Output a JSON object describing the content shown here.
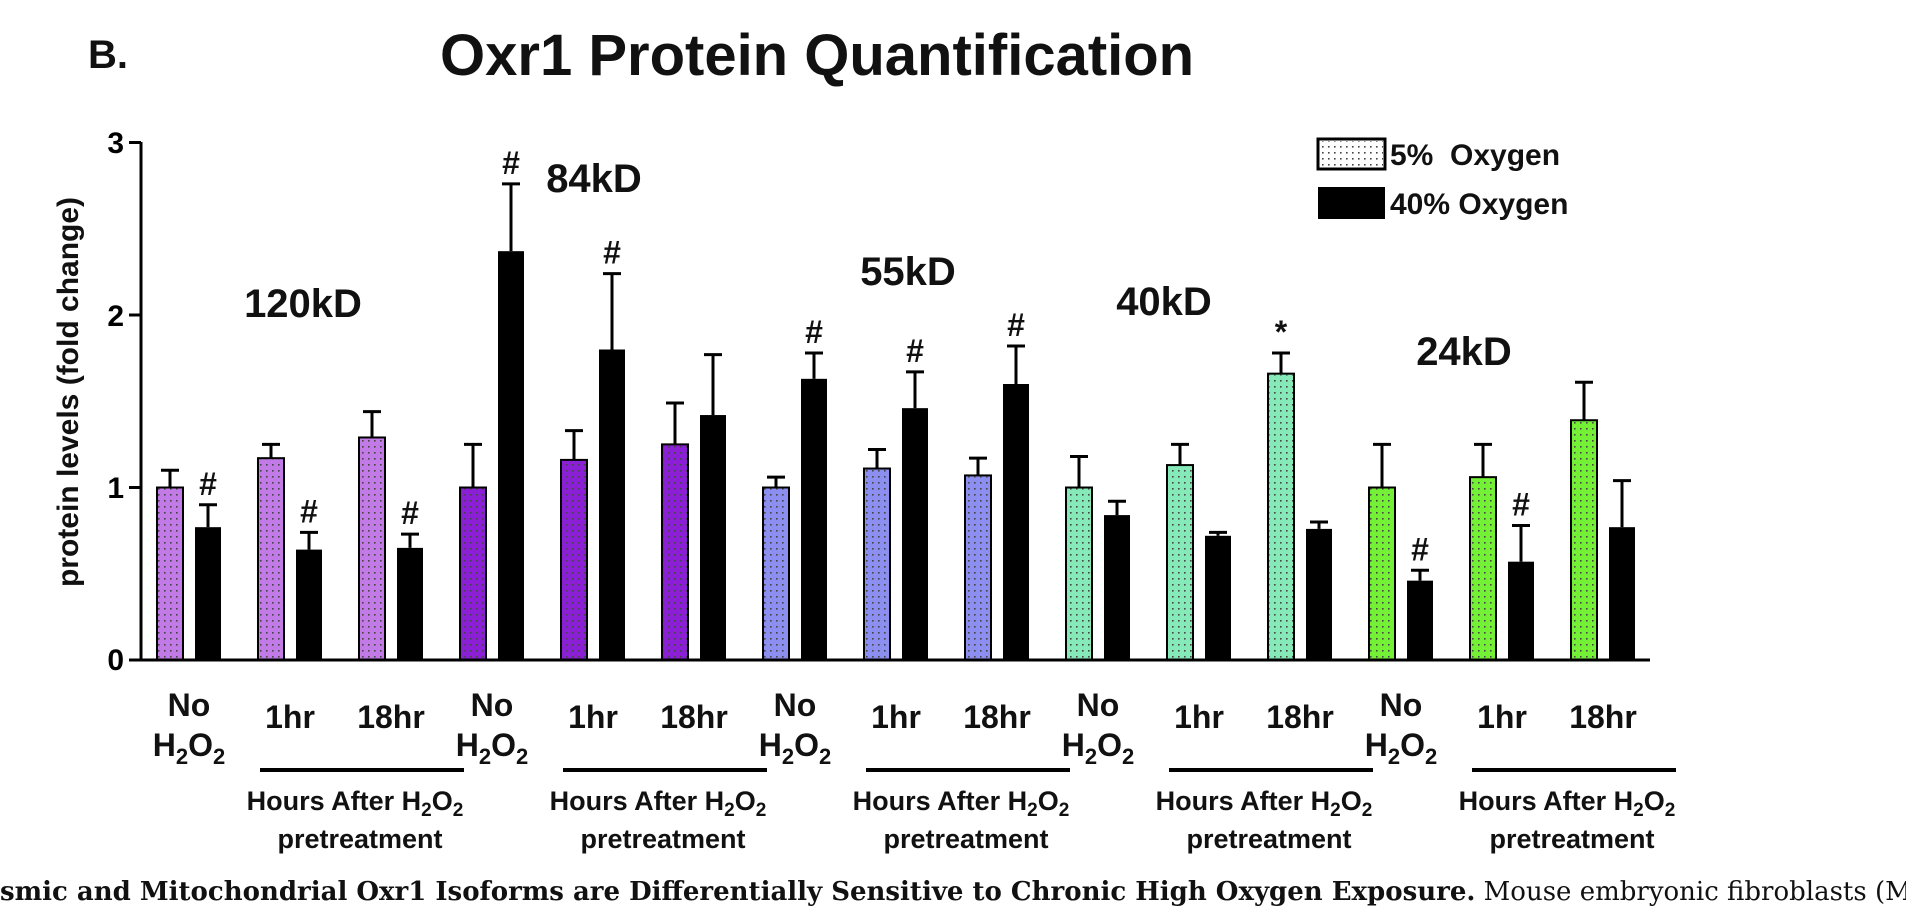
{
  "panel_label": "B.",
  "caption": {
    "bold": "smic and Mitochondrial Oxr1 Isoforms are Differentially Sensitive to Chronic High Oxygen Exposure.",
    "normal": " Mouse embryonic fibroblasts (MEF) cells"
  },
  "chart_data": {
    "type": "bar",
    "title": "Oxr1 Protein Quantification",
    "ylabel": "protein levels (fold change)",
    "ylim": [
      0,
      3
    ],
    "yticks": [
      "0",
      "1",
      "2",
      "3"
    ],
    "grid": false,
    "legend_position": "top-right",
    "legend": [
      {
        "label": "5%  Oxygen",
        "style": "white-dotted"
      },
      {
        "label": "40% Oxygen",
        "style": "black"
      }
    ],
    "series": [
      {
        "name": "5%  Oxygen"
      },
      {
        "name": "40% Oxygen"
      }
    ],
    "time_label": {
      "before": "Hours  After H",
      "sub": "2",
      "after": "O",
      "sub2": "2",
      "line2": "pretreatment"
    },
    "no_h2o2_label": {
      "top": "No",
      "bottom_prefix": "H",
      "sub": "2",
      "mid": "O",
      "sub2": "2"
    },
    "groups": [
      {
        "isoform": "120kD",
        "color": "#c27ae6",
        "categories": [
          {
            "label": "No H2O2",
            "values": [
              1.0,
              0.77
            ],
            "errors": [
              0.1,
              0.13
            ],
            "marks": [
              "",
              "#"
            ]
          },
          {
            "label": "1hr",
            "values": [
              1.17,
              0.64
            ],
            "errors": [
              0.08,
              0.1
            ],
            "marks": [
              "",
              "#"
            ]
          },
          {
            "label": "18hr",
            "values": [
              1.29,
              0.65
            ],
            "errors": [
              0.15,
              0.08
            ],
            "marks": [
              "",
              "#"
            ]
          }
        ]
      },
      {
        "isoform": "84kD",
        "color": "#8a1fd6",
        "categories": [
          {
            "label": "No H2O2",
            "values": [
              1.0,
              2.37
            ],
            "errors": [
              0.25,
              0.39
            ],
            "marks": [
              "",
              "#"
            ]
          },
          {
            "label": "1hr",
            "values": [
              1.16,
              1.8
            ],
            "errors": [
              0.17,
              0.44
            ],
            "marks": [
              "",
              "#"
            ]
          },
          {
            "label": "18hr",
            "values": [
              1.25,
              1.42
            ],
            "errors": [
              0.24,
              0.35
            ],
            "marks": [
              "",
              ""
            ]
          }
        ]
      },
      {
        "isoform": "55kD",
        "color": "#8c8ef0",
        "categories": [
          {
            "label": "No H2O2",
            "values": [
              1.0,
              1.63
            ],
            "errors": [
              0.06,
              0.15
            ],
            "marks": [
              "",
              "#"
            ]
          },
          {
            "label": "1hr",
            "values": [
              1.11,
              1.46
            ],
            "errors": [
              0.11,
              0.21
            ],
            "marks": [
              "",
              "#"
            ]
          },
          {
            "label": "18hr",
            "values": [
              1.07,
              1.6
            ],
            "errors": [
              0.1,
              0.22
            ],
            "marks": [
              "",
              "#"
            ]
          }
        ]
      },
      {
        "isoform": "40kD",
        "color": "#86eab8",
        "categories": [
          {
            "label": "No H2O2",
            "values": [
              1.0,
              0.84
            ],
            "errors": [
              0.18,
              0.08
            ],
            "marks": [
              "",
              ""
            ]
          },
          {
            "label": "1hr",
            "values": [
              1.13,
              0.72
            ],
            "errors": [
              0.12,
              0.02
            ],
            "marks": [
              "",
              ""
            ]
          },
          {
            "label": "18hr",
            "values": [
              1.66,
              0.76
            ],
            "errors": [
              0.12,
              0.04
            ],
            "marks": [
              "*",
              ""
            ]
          }
        ]
      },
      {
        "isoform": "24kD",
        "color": "#74f036",
        "categories": [
          {
            "label": "No H2O2",
            "values": [
              1.0,
              0.46
            ],
            "errors": [
              0.25,
              0.06
            ],
            "marks": [
              "",
              "#"
            ]
          },
          {
            "label": "1hr",
            "values": [
              1.06,
              0.57
            ],
            "errors": [
              0.19,
              0.21
            ],
            "marks": [
              "",
              "#"
            ]
          },
          {
            "label": "18hr",
            "values": [
              1.39,
              0.77
            ],
            "errors": [
              0.22,
              0.27
            ],
            "marks": [
              "",
              ""
            ]
          }
        ]
      }
    ]
  }
}
